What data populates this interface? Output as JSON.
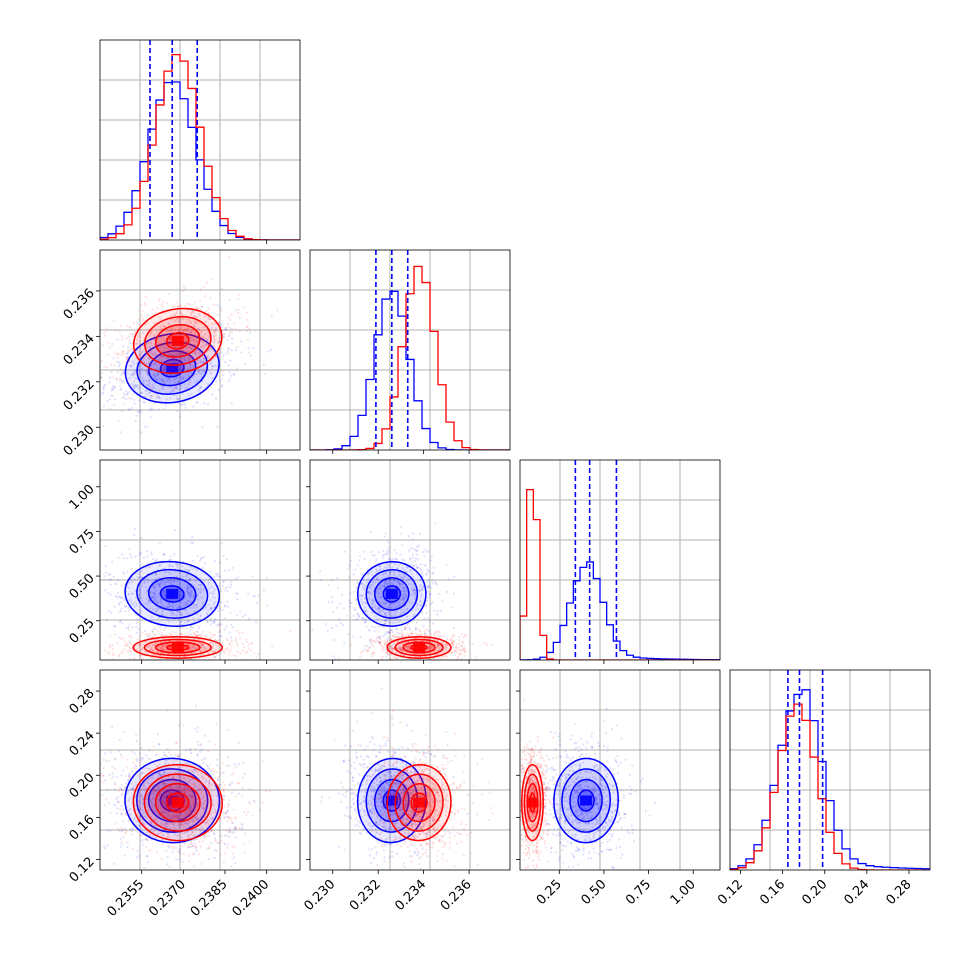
{
  "colors": {
    "blue": "#0000ff",
    "red": "#ff0000",
    "grid": "#b0b0b0",
    "frame": "#000000"
  },
  "chart_data": {
    "type": "corner",
    "title": "",
    "parameters": [
      {
        "range": [
          0.234,
          0.2412
        ],
        "ticks": [
          "0.2355",
          "0.2370",
          "0.2385",
          "0.2400"
        ]
      },
      {
        "range": [
          0.229,
          0.2378
        ],
        "ticks": [
          "0.230",
          "0.232",
          "0.234",
          "0.236"
        ]
      },
      {
        "range": [
          0.03,
          1.15
        ],
        "ticks": [
          "0.25",
          "0.50",
          "0.75",
          "1.00"
        ]
      },
      {
        "range": [
          0.11,
          0.3
        ],
        "ticks": [
          "0.12",
          "0.16",
          "0.20",
          "0.24",
          "0.28"
        ]
      }
    ],
    "series": [
      {
        "color": "blue",
        "means": [
          0.2366,
          0.2326,
          0.4,
          0.176
        ],
        "sigmas": [
          0.00085,
          0.00075,
          0.09,
          0.02
        ],
        "correlations": [
          [
            0,
            1,
            0.3
          ],
          [
            0,
            2,
            -0.15
          ],
          [
            0,
            3,
            -0.1
          ],
          [
            1,
            2,
            0.2
          ],
          [
            1,
            3,
            -0.1
          ],
          [
            2,
            3,
            -0.05
          ]
        ],
        "quantiles": [
          [
            0.2358,
            0.2366,
            0.2375
          ],
          [
            0.2319,
            0.2326,
            0.2333
          ],
          [
            0.34,
            0.42,
            0.57
          ],
          [
            0.165,
            0.176,
            0.198
          ]
        ]
      },
      {
        "color": "red",
        "means": [
          0.2368,
          0.2338,
          0.1,
          0.174
        ],
        "sigmas": [
          0.0008,
          0.0007,
          0.03,
          0.018
        ],
        "correlations": [
          [
            0,
            1,
            0.3
          ],
          [
            0,
            2,
            0.0
          ],
          [
            0,
            3,
            -0.1
          ],
          [
            1,
            2,
            0.0
          ],
          [
            1,
            3,
            -0.1
          ],
          [
            2,
            3,
            0.0
          ]
        ],
        "quantiles": []
      }
    ],
    "histogram_peaks": [
      {
        "blue": 0.8,
        "red": 0.93
      },
      {
        "blue": 0.8,
        "red": 0.92
      },
      {
        "blue": 0.47,
        "red": 0.95
      },
      {
        "blue": 0.88,
        "red": 0.83
      }
    ],
    "grid": true,
    "legend": "none"
  }
}
